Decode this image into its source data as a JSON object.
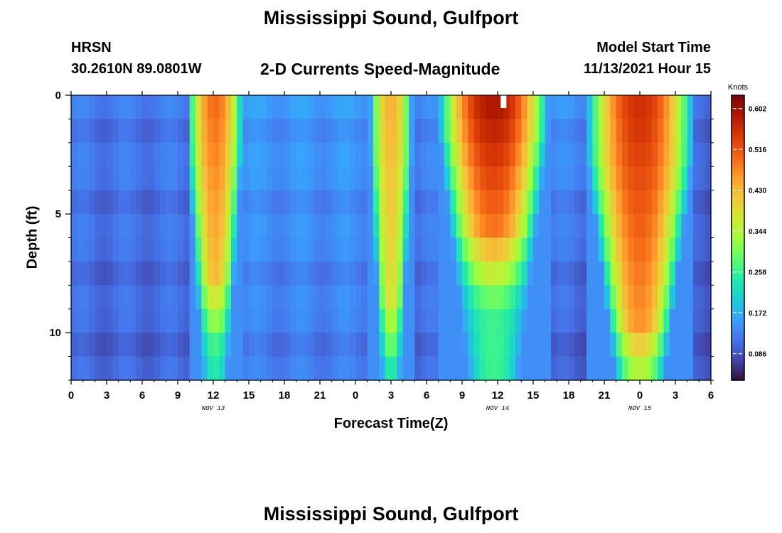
{
  "header": {
    "title": "Mississippi Sound, Gulfport",
    "station_id": "HRSN",
    "coordinates": "30.2610N  89.0801W",
    "subtitle": "2-D Currents Speed-Magnitude",
    "model_start_label": "Model Start Time",
    "model_start_value": "11/13/2021 Hour 15"
  },
  "footer": {
    "next_title": "Mississippi Sound, Gulfport"
  },
  "chart_data": {
    "type": "heatmap",
    "title": "2-D Currents Speed-Magnitude",
    "xlabel": "Forecast Time(Z)",
    "ylabel": "Depth (ft)",
    "x_start": "11/13/2021 Hour 0",
    "x_range_hours": [
      0,
      54
    ],
    "x_tick_labels": [
      "0",
      "3",
      "6",
      "9",
      "12",
      "15",
      "18",
      "21",
      "0",
      "3",
      "6",
      "9",
      "12",
      "15",
      "18",
      "21",
      "0",
      "3",
      "6"
    ],
    "x_date_labels": [
      {
        "label": "NOV 13",
        "hour": 12
      },
      {
        "label": "NOV 14",
        "hour": 36
      },
      {
        "label": "NOV 15",
        "hour": 48
      }
    ],
    "y_range_ft": [
      0,
      12
    ],
    "y_reversed": true,
    "y_tick_labels": [
      "0",
      "5",
      "10"
    ],
    "y_tick_values": [
      0,
      5,
      10
    ],
    "depth_levels_ft": [
      0,
      1,
      2,
      3,
      4,
      5,
      6,
      7,
      8,
      9,
      10,
      11,
      12
    ],
    "colorbar": {
      "unit": "Knots",
      "range": [
        0.03,
        0.63
      ],
      "tick_labels": [
        "0.602",
        "0.516",
        "0.430",
        "0.344",
        "0.258",
        "0.172",
        "0.086"
      ],
      "tick_values": [
        0.602,
        0.516,
        0.43,
        0.344,
        0.258,
        0.172,
        0.086
      ],
      "colors": [
        "#30123b",
        "#4145ab",
        "#4675ed",
        "#39a2fc",
        "#1bcfd4",
        "#24eca6",
        "#61fc6c",
        "#a4fc3b",
        "#d1e834",
        "#f3c63a",
        "#fe9b2d",
        "#f36315",
        "#d93806",
        "#b11901",
        "#7a0403"
      ]
    },
    "marker": {
      "hour": 36.5,
      "depth_ft": 0.3
    },
    "segments": [
      {
        "name": "bg1",
        "hours": [
          0,
          9.8
        ],
        "top": 0.12,
        "bottom": 0.1
      },
      {
        "name": "peak1",
        "hours": [
          9.8,
          14.5
        ],
        "top": 0.5,
        "bottom": 0.2,
        "core_depth": 7.5
      },
      {
        "name": "trough1",
        "hours": [
          14.5,
          25.2
        ],
        "top": 0.15,
        "bottom": 0.12
      },
      {
        "name": "peak2",
        "hours": [
          25.2,
          28.8
        ],
        "top": 0.44,
        "bottom": 0.22,
        "core_depth": 8.5
      },
      {
        "name": "trough2",
        "hours": [
          28.8,
          31.0
        ],
        "top": 0.13,
        "bottom": 0.1
      },
      {
        "name": "peak3",
        "hours": [
          31.0,
          40.3
        ],
        "top": 0.6,
        "bottom": 0.16,
        "core_depth": 5.5
      },
      {
        "name": "trough3",
        "hours": [
          40.3,
          43.5
        ],
        "top": 0.14,
        "bottom": 0.09
      },
      {
        "name": "peak4",
        "hours": [
          43.5,
          52.5
        ],
        "top": 0.56,
        "bottom": 0.18,
        "core_depth": 9.5
      },
      {
        "name": "bg4",
        "hours": [
          52.5,
          54
        ],
        "top": 0.1,
        "bottom": 0.08
      }
    ]
  }
}
